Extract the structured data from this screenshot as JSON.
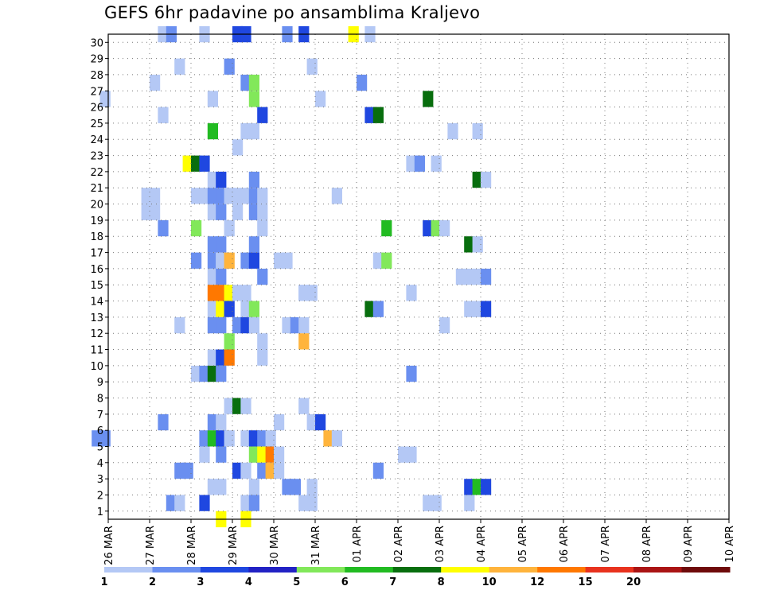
{
  "chart_data": {
    "type": "heatmap",
    "title": "GEFS 6hr padavine po ansamblima Kraljevo",
    "xlabel": "",
    "ylabel": "",
    "x_ticks": [
      "26 MAR",
      "27 MAR",
      "28 MAR",
      "29 MAR",
      "30 MAR",
      "31 MAR",
      "01 APR",
      "02 APR",
      "03 APR",
      "04 APR",
      "05 APR",
      "06 APR",
      "07 APR",
      "08 APR",
      "09 APR",
      "10 APR"
    ],
    "y_ticks": [
      "1",
      "2",
      "3",
      "4",
      "5",
      "6",
      "7",
      "8",
      "9",
      "10",
      "11",
      "12",
      "13",
      "14",
      "15",
      "16",
      "17",
      "18",
      "19",
      "20",
      "21",
      "22",
      "23",
      "24",
      "25",
      "26",
      "27",
      "28",
      "29",
      "30"
    ],
    "x_range": [
      "26 MAR 00Z",
      "10 APR 00Z"
    ],
    "y_range": [
      0,
      30
    ],
    "time_step_hours": 6,
    "grid": true,
    "colorbar": {
      "placement": "bottom",
      "labels": [
        "1",
        "2",
        "3",
        "4",
        "5",
        "6",
        "7",
        "8",
        "10",
        "12",
        "15",
        "20"
      ],
      "colors": [
        "#b4c8f5",
        "#6a8ff0",
        "#1f47e0",
        "#2222c4",
        "#82e85a",
        "#22bb22",
        "#086e0e",
        "#ffff00",
        "#ffb43c",
        "#ff7800",
        "#e8321e",
        "#aa1414",
        "#6e0a0a"
      ]
    },
    "cells": [
      [
        30,
        31.2,
        "#b4c8f5"
      ],
      [
        30,
        31.4,
        "#6a8ff0"
      ],
      [
        30,
        32.2,
        "#b4c8f5"
      ],
      [
        30,
        33.0,
        "#1f47e0"
      ],
      [
        30,
        33.2,
        "#1f47e0"
      ],
      [
        30,
        34.2,
        "#6a8ff0"
      ],
      [
        30,
        34.6,
        "#1f47e0"
      ],
      [
        30,
        35.8,
        "#ffff00"
      ],
      [
        30,
        36.2,
        "#b4c8f5"
      ],
      [
        28,
        31.6,
        "#b4c8f5"
      ],
      [
        28,
        32.8,
        "#6a8ff0"
      ],
      [
        28,
        34.8,
        "#b4c8f5"
      ],
      [
        27,
        31.0,
        "#b4c8f5"
      ],
      [
        27,
        33.2,
        "#6a8ff0"
      ],
      [
        27,
        33.4,
        "#82e85a"
      ],
      [
        27,
        36.0,
        "#6a8ff0"
      ],
      [
        26,
        29.8,
        "#b4c8f5"
      ],
      [
        26,
        32.4,
        "#b4c8f5"
      ],
      [
        26,
        33.4,
        "#82e85a"
      ],
      [
        26,
        35.0,
        "#b4c8f5"
      ],
      [
        26,
        37.6,
        "#086e0e"
      ],
      [
        25,
        31.2,
        "#b4c8f5"
      ],
      [
        25,
        33.6,
        "#1f47e0"
      ],
      [
        25,
        36.2,
        "#1f47e0"
      ],
      [
        25,
        36.4,
        "#086e0e"
      ],
      [
        24,
        32.4,
        "#22bb22"
      ],
      [
        24,
        33.2,
        "#b4c8f5"
      ],
      [
        24,
        33.4,
        "#b4c8f5"
      ],
      [
        24,
        38.2,
        "#b4c8f5"
      ],
      [
        24,
        38.8,
        "#b4c8f5"
      ],
      [
        23,
        33.0,
        "#b4c8f5"
      ],
      [
        22,
        31.8,
        "#ffff00"
      ],
      [
        22,
        32.0,
        "#086e0e"
      ],
      [
        22,
        32.2,
        "#1f47e0"
      ],
      [
        22,
        37.2,
        "#b4c8f5"
      ],
      [
        22,
        37.4,
        "#6a8ff0"
      ],
      [
        22,
        37.8,
        "#b4c8f5"
      ],
      [
        21,
        32.4,
        "#b4c8f5"
      ],
      [
        21,
        32.6,
        "#1f47e0"
      ],
      [
        21,
        33.4,
        "#6a8ff0"
      ],
      [
        21,
        38.8,
        "#086e0e"
      ],
      [
        21,
        39.0,
        "#b4c8f5"
      ],
      [
        20,
        30.8,
        "#b4c8f5"
      ],
      [
        20,
        31.0,
        "#b4c8f5"
      ],
      [
        20,
        32.0,
        "#b4c8f5"
      ],
      [
        20,
        32.2,
        "#b4c8f5"
      ],
      [
        20,
        32.4,
        "#6a8ff0"
      ],
      [
        20,
        32.6,
        "#6a8ff0"
      ],
      [
        20,
        32.8,
        "#b4c8f5"
      ],
      [
        20,
        33.0,
        "#b4c8f5"
      ],
      [
        20,
        33.2,
        "#b4c8f5"
      ],
      [
        20,
        33.4,
        "#6a8ff0"
      ],
      [
        20,
        33.6,
        "#b4c8f5"
      ],
      [
        20,
        35.4,
        "#b4c8f5"
      ],
      [
        19,
        30.8,
        "#b4c8f5"
      ],
      [
        19,
        31.0,
        "#b4c8f5"
      ],
      [
        19,
        32.4,
        "#b4c8f5"
      ],
      [
        19,
        32.6,
        "#6a8ff0"
      ],
      [
        19,
        33.0,
        "#b4c8f5"
      ],
      [
        19,
        33.4,
        "#6a8ff0"
      ],
      [
        19,
        33.6,
        "#b4c8f5"
      ],
      [
        18,
        31.2,
        "#6a8ff0"
      ],
      [
        18,
        32.0,
        "#82e85a"
      ],
      [
        18,
        32.8,
        "#b4c8f5"
      ],
      [
        18,
        33.6,
        "#b4c8f5"
      ],
      [
        18,
        36.6,
        "#22bb22"
      ],
      [
        18,
        37.6,
        "#1f47e0"
      ],
      [
        18,
        37.8,
        "#82e85a"
      ],
      [
        18,
        38.0,
        "#b4c8f5"
      ],
      [
        17,
        32.4,
        "#6a8ff0"
      ],
      [
        17,
        32.6,
        "#6a8ff0"
      ],
      [
        17,
        33.4,
        "#6a8ff0"
      ],
      [
        17,
        38.6,
        "#086e0e"
      ],
      [
        17,
        38.8,
        "#b4c8f5"
      ],
      [
        16,
        32.4,
        "#6a8ff0"
      ],
      [
        16,
        32.6,
        "#b4c8f5"
      ],
      [
        16,
        32.0,
        "#6a8ff0"
      ],
      [
        16,
        32.6,
        "#b4c8f5"
      ],
      [
        16,
        32.8,
        "#ffb43c"
      ],
      [
        16,
        33.2,
        "#6a8ff0"
      ],
      [
        16,
        33.4,
        "#1f47e0"
      ],
      [
        16,
        34.0,
        "#b4c8f5"
      ],
      [
        16,
        34.2,
        "#b4c8f5"
      ],
      [
        16,
        36.4,
        "#b4c8f5"
      ],
      [
        16,
        36.6,
        "#82e85a"
      ],
      [
        15,
        32.4,
        "#b4c8f5"
      ],
      [
        15,
        32.6,
        "#6a8ff0"
      ],
      [
        15,
        33.6,
        "#6a8ff0"
      ],
      [
        15,
        38.4,
        "#b4c8f5"
      ],
      [
        15,
        38.6,
        "#b4c8f5"
      ],
      [
        15,
        38.8,
        "#b4c8f5"
      ],
      [
        15,
        39.0,
        "#6a8ff0"
      ],
      [
        14,
        32.8,
        "#b4c8f5"
      ],
      [
        14,
        34.6,
        "#b4c8f5"
      ],
      [
        14,
        37.2,
        "#b4c8f5"
      ],
      [
        14,
        32.4,
        "#ff7800"
      ],
      [
        14,
        32.6,
        "#ff7800"
      ],
      [
        14,
        32.8,
        "#ffff00"
      ],
      [
        14,
        33.0,
        "#b4c8f5"
      ],
      [
        14,
        33.2,
        "#b4c8f5"
      ],
      [
        14,
        34.6,
        "#b4c8f5"
      ],
      [
        14,
        34.8,
        "#b4c8f5"
      ],
      [
        13,
        32.4,
        "#b4c8f5"
      ],
      [
        13,
        32.6,
        "#ffff00"
      ],
      [
        13,
        32.8,
        "#1f47e0"
      ],
      [
        13,
        33.2,
        "#b4c8f5"
      ],
      [
        13,
        33.4,
        "#82e85a"
      ],
      [
        13,
        36.2,
        "#086e0e"
      ],
      [
        13,
        36.4,
        "#6a8ff0"
      ],
      [
        13,
        38.6,
        "#b4c8f5"
      ],
      [
        13,
        38.8,
        "#b4c8f5"
      ],
      [
        13,
        39.0,
        "#1f47e0"
      ],
      [
        12,
        31.6,
        "#b4c8f5"
      ],
      [
        12,
        32.4,
        "#6a8ff0"
      ],
      [
        12,
        32.6,
        "#6a8ff0"
      ],
      [
        12,
        33.0,
        "#6a8ff0"
      ],
      [
        12,
        33.2,
        "#1f47e0"
      ],
      [
        12,
        33.4,
        "#b4c8f5"
      ],
      [
        12,
        34.2,
        "#b4c8f5"
      ],
      [
        12,
        34.4,
        "#6a8ff0"
      ],
      [
        12,
        34.6,
        "#b4c8f5"
      ],
      [
        12,
        38.0,
        "#b4c8f5"
      ],
      [
        11,
        32.8,
        "#82e85a"
      ],
      [
        11,
        33.6,
        "#b4c8f5"
      ],
      [
        11,
        34.6,
        "#ffb43c"
      ],
      [
        10,
        32.4,
        "#b4c8f5"
      ],
      [
        10,
        32.6,
        "#1f47e0"
      ],
      [
        10,
        32.8,
        "#ff7800"
      ],
      [
        10,
        33.6,
        "#b4c8f5"
      ],
      [
        9,
        32.0,
        "#b4c8f5"
      ],
      [
        9,
        32.2,
        "#6a8ff0"
      ],
      [
        9,
        32.4,
        "#086e0e"
      ],
      [
        9,
        32.6,
        "#6a8ff0"
      ],
      [
        9,
        37.2,
        "#6a8ff0"
      ],
      [
        7,
        32.8,
        "#b4c8f5"
      ],
      [
        7,
        33.0,
        "#086e0e"
      ],
      [
        7,
        33.2,
        "#b4c8f5"
      ],
      [
        7,
        34.6,
        "#b4c8f5"
      ],
      [
        6,
        31.2,
        "#6a8ff0"
      ],
      [
        6,
        32.4,
        "#6a8ff0"
      ],
      [
        6,
        32.6,
        "#b4c8f5"
      ],
      [
        6,
        34.0,
        "#b4c8f5"
      ],
      [
        6,
        34.8,
        "#b4c8f5"
      ],
      [
        6,
        35.0,
        "#1f47e0"
      ],
      [
        5,
        29.6,
        "#6a8ff0"
      ],
      [
        5,
        29.8,
        "#6a8ff0"
      ],
      [
        5,
        32.2,
        "#6a8ff0"
      ],
      [
        5,
        32.4,
        "#22bb22"
      ],
      [
        5,
        32.6,
        "#1f47e0"
      ],
      [
        5,
        32.8,
        "#b4c8f5"
      ],
      [
        5,
        33.2,
        "#b4c8f5"
      ],
      [
        5,
        33.4,
        "#1f47e0"
      ],
      [
        5,
        33.6,
        "#6a8ff0"
      ],
      [
        5,
        33.8,
        "#b4c8f5"
      ],
      [
        5,
        35.2,
        "#ffb43c"
      ],
      [
        5,
        35.4,
        "#b4c8f5"
      ],
      [
        4,
        32.2,
        "#b4c8f5"
      ],
      [
        4,
        32.6,
        "#6a8ff0"
      ],
      [
        4,
        33.4,
        "#82e85a"
      ],
      [
        4,
        33.6,
        "#ffff00"
      ],
      [
        4,
        33.8,
        "#ff7800"
      ],
      [
        4,
        34.0,
        "#b4c8f5"
      ],
      [
        4,
        37.0,
        "#b4c8f5"
      ],
      [
        4,
        37.2,
        "#b4c8f5"
      ],
      [
        3,
        31.6,
        "#6a8ff0"
      ],
      [
        3,
        31.8,
        "#6a8ff0"
      ],
      [
        3,
        33.0,
        "#1f47e0"
      ],
      [
        3,
        33.2,
        "#b4c8f5"
      ],
      [
        3,
        33.6,
        "#6a8ff0"
      ],
      [
        3,
        33.8,
        "#ffb43c"
      ],
      [
        3,
        34.0,
        "#b4c8f5"
      ],
      [
        3,
        36.4,
        "#6a8ff0"
      ],
      [
        2,
        32.4,
        "#b4c8f5"
      ],
      [
        2,
        32.6,
        "#b4c8f5"
      ],
      [
        2,
        33.4,
        "#b4c8f5"
      ],
      [
        2,
        34.2,
        "#6a8ff0"
      ],
      [
        2,
        34.4,
        "#6a8ff0"
      ],
      [
        2,
        34.8,
        "#b4c8f5"
      ],
      [
        2,
        38.6,
        "#1f47e0"
      ],
      [
        2,
        38.8,
        "#22bb22"
      ],
      [
        2,
        39.0,
        "#1f47e0"
      ],
      [
        1,
        31.4,
        "#6a8ff0"
      ],
      [
        1,
        31.6,
        "#b4c8f5"
      ],
      [
        1,
        32.2,
        "#1f47e0"
      ],
      [
        1,
        33.2,
        "#b4c8f5"
      ],
      [
        1,
        33.4,
        "#6a8ff0"
      ],
      [
        1,
        34.6,
        "#b4c8f5"
      ],
      [
        1,
        34.8,
        "#b4c8f5"
      ],
      [
        1,
        37.6,
        "#b4c8f5"
      ],
      [
        1,
        37.8,
        "#b4c8f5"
      ],
      [
        1,
        38.6,
        "#b4c8f5"
      ],
      [
        0,
        32.6,
        "#ffff00"
      ],
      [
        0,
        33.2,
        "#ffff00"
      ]
    ]
  }
}
